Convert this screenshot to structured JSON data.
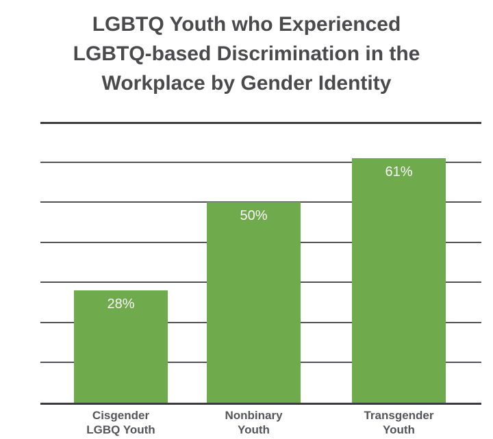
{
  "chart_data": {
    "type": "bar",
    "title": "LGBTQ Youth who Experienced LGBTQ-based Discrimination in the Workplace by Gender Identity",
    "title_lines": [
      "LGBTQ Youth who Experienced",
      "LGBTQ-based Discrimination in the",
      "Workplace by Gender Identity"
    ],
    "categories": [
      "Cisgender LGBQ Youth",
      "Nonbinary Youth",
      "Transgender Youth"
    ],
    "category_lines": [
      [
        "Cisgender",
        "LGBQ Youth"
      ],
      [
        "Nonbinary",
        "Youth"
      ],
      [
        "Transgender",
        "Youth"
      ]
    ],
    "values": [
      28,
      50,
      61
    ],
    "value_labels": [
      "28%",
      "50%",
      "61%"
    ],
    "xlabel": "",
    "ylabel": "",
    "ylim": [
      0,
      70
    ],
    "grid_interval": 10,
    "grid": true,
    "legend": false,
    "colors": {
      "bar": "#6FAB4C",
      "title_text": "#4A4A4C",
      "category_text": "#545559",
      "value_text": "#FCFCFA",
      "axis_line": "#3A3A3D",
      "gridline": "#515155",
      "background": "#FFFFFF"
    }
  }
}
